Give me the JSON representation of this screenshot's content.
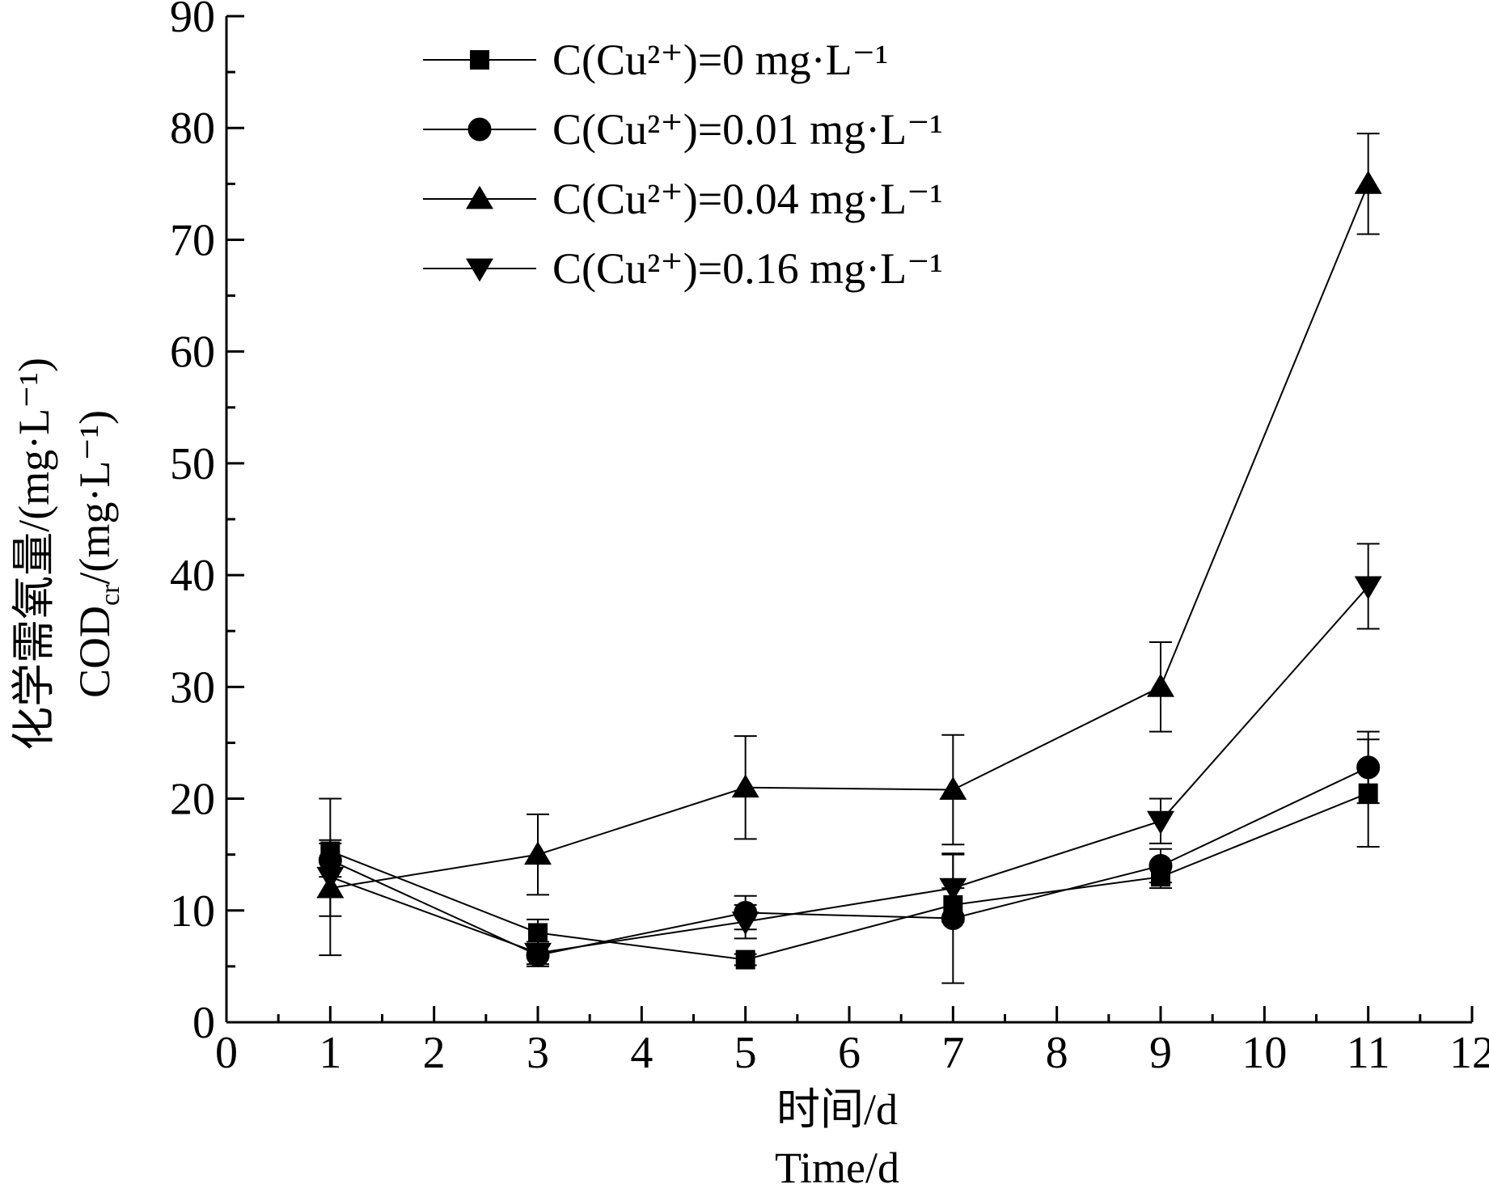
{
  "chart_data": {
    "type": "line",
    "xlabel_cn": "时间/d",
    "xlabel_en": "Time/d",
    "ylabel_cn": "化学需氧量/(mg·L⁻¹)",
    "ylabel_en_main": "COD",
    "ylabel_en_sub": "cr",
    "ylabel_en_unit": "/(mg·L⁻¹)",
    "xlim": [
      0,
      12
    ],
    "ylim": [
      0,
      90
    ],
    "xticks": [
      "0",
      "1",
      "2",
      "3",
      "4",
      "5",
      "6",
      "7",
      "8",
      "9",
      "10",
      "11",
      "12"
    ],
    "yticks": [
      "0",
      "10",
      "20",
      "30",
      "40",
      "50",
      "60",
      "70",
      "80",
      "90"
    ],
    "legend_position": "top-left",
    "grid": false,
    "x": [
      1,
      3,
      5,
      7,
      9,
      11
    ],
    "series": [
      {
        "name": "C(Cu²⁺)=0 mg·L⁻¹",
        "marker": "square",
        "values": [
          15.3,
          8.0,
          5.6,
          10.5,
          13.0,
          20.5
        ],
        "errors": [
          1.0,
          1.2,
          0.5,
          1.5,
          1.0,
          4.8
        ]
      },
      {
        "name": "C(Cu²⁺)=0.01 mg·L⁻¹",
        "marker": "circle",
        "values": [
          14.5,
          6.0,
          9.8,
          9.3,
          14.0,
          22.8
        ],
        "errors": [
          1.5,
          1.0,
          1.5,
          5.8,
          1.5,
          3.2
        ]
      },
      {
        "name": "C(Cu²⁺)=0.04 mg·L⁻¹",
        "marker": "triangle-up",
        "values": [
          12.0,
          15.0,
          21.0,
          20.8,
          30.0,
          75.0
        ],
        "errors": [
          2.5,
          3.6,
          4.6,
          4.9,
          4.0,
          4.5
        ]
      },
      {
        "name": "C(Cu²⁺)=0.16 mg·L⁻¹",
        "marker": "triangle-down",
        "values": [
          13.0,
          6.2,
          9.0,
          12.0,
          18.0,
          39.0
        ],
        "errors": [
          7.0,
          1.0,
          1.5,
          3.0,
          2.0,
          3.8
        ]
      }
    ]
  }
}
